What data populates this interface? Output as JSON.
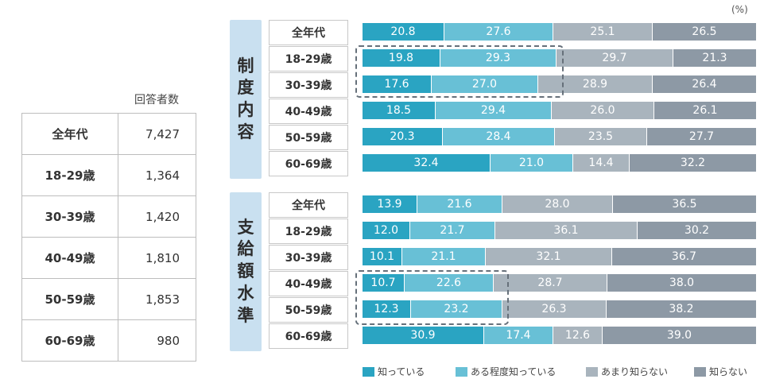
{
  "unit_label": "(%)",
  "respondents": {
    "header": "回答者数",
    "rows": [
      {
        "label": "全年代",
        "value": "7,427"
      },
      {
        "label": "18-29歳",
        "value": "1,364"
      },
      {
        "label": "30-39歳",
        "value": "1,420"
      },
      {
        "label": "40-49歳",
        "value": "1,810"
      },
      {
        "label": "50-59歳",
        "value": "1,853"
      },
      {
        "label": "60-69歳",
        "value": "980"
      }
    ]
  },
  "colors": [
    "#2aa4c2",
    "#68c0d6",
    "#a9b4bd",
    "#8d99a5"
  ],
  "chart_data": [
    {
      "type": "bar",
      "orientation": "horizontal",
      "stacked": true,
      "title": "制度内容",
      "categories": [
        "全年代",
        "18-29歳",
        "30-39歳",
        "40-49歳",
        "50-59歳",
        "60-69歳"
      ],
      "series": [
        {
          "name": "知っている",
          "values": [
            20.8,
            19.8,
            17.6,
            18.5,
            20.3,
            32.4
          ]
        },
        {
          "name": "ある程度知っている",
          "values": [
            27.6,
            29.3,
            27.0,
            29.4,
            28.4,
            21.0
          ]
        },
        {
          "name": "あまり知らない",
          "values": [
            25.1,
            29.7,
            28.9,
            26.0,
            23.5,
            14.4
          ]
        },
        {
          "name": "知らない",
          "values": [
            26.5,
            21.3,
            26.4,
            26.1,
            27.7,
            32.2
          ]
        }
      ],
      "highlight_rows": [
        "18-29歳",
        "30-39歳"
      ],
      "xlim": [
        0,
        100
      ],
      "legend": "bottom"
    },
    {
      "type": "bar",
      "orientation": "horizontal",
      "stacked": true,
      "title": "支給額水準",
      "categories": [
        "全年代",
        "18-29歳",
        "30-39歳",
        "40-49歳",
        "50-59歳",
        "60-69歳"
      ],
      "series": [
        {
          "name": "知っている",
          "values": [
            13.9,
            12.0,
            10.1,
            10.7,
            12.3,
            30.9
          ]
        },
        {
          "name": "ある程度知っている",
          "values": [
            21.6,
            21.7,
            21.1,
            22.6,
            23.2,
            17.4
          ]
        },
        {
          "name": "あまり知らない",
          "values": [
            28.0,
            36.1,
            32.1,
            28.7,
            26.3,
            12.6
          ]
        },
        {
          "name": "知らない",
          "values": [
            36.5,
            30.2,
            36.7,
            38.0,
            38.2,
            39.0
          ]
        }
      ],
      "highlight_rows": [
        "40-49歳",
        "50-59歳"
      ],
      "xlim": [
        0,
        100
      ],
      "legend": "bottom"
    }
  ],
  "legend": [
    "知っている",
    "ある程度知っている",
    "あまり知らない",
    "知らない"
  ]
}
